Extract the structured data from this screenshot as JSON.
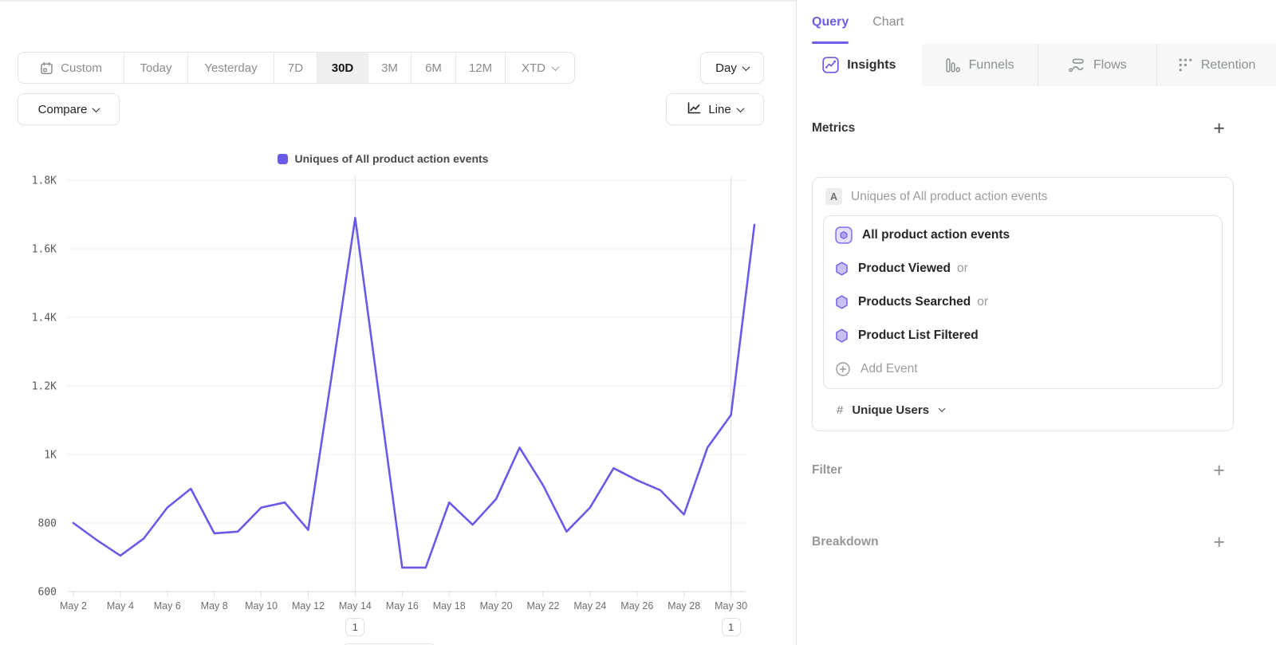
{
  "colors": {
    "accent": "#6C5CE7",
    "line": "#6A5AE8"
  },
  "toolbar": {
    "date_ranges": [
      {
        "label": "Custom",
        "icon": "calendar-icon"
      },
      {
        "label": "Today"
      },
      {
        "label": "Yesterday"
      },
      {
        "label": "7D"
      },
      {
        "label": "30D"
      },
      {
        "label": "3M"
      },
      {
        "label": "6M"
      },
      {
        "label": "12M"
      },
      {
        "label": "XTD",
        "chevron": true
      }
    ],
    "selected_range": "30D",
    "granularity": "Day",
    "compare_label": "Compare",
    "chart_type_label": "Line"
  },
  "panel": {
    "header_tabs": [
      {
        "label": "Query",
        "active": true
      },
      {
        "label": "Chart",
        "active": false
      }
    ],
    "report_tabs": [
      {
        "label": "Insights",
        "icon": "insights-icon",
        "active": true
      },
      {
        "label": "Funnels",
        "icon": "funnels-icon",
        "active": false
      },
      {
        "label": "Flows",
        "icon": "flows-icon",
        "active": false
      },
      {
        "label": "Retention",
        "icon": "retention-icon",
        "active": false
      }
    ],
    "metrics": {
      "title": "Metrics",
      "add_button": "+",
      "metric_letter": "A",
      "metric_title": "Uniques of All product action events",
      "events": [
        {
          "name": "All product action events",
          "suffix": "",
          "icon": "all-events-icon"
        },
        {
          "name": "Product Viewed",
          "suffix": "or",
          "icon": "hexagon-icon"
        },
        {
          "name": "Products Searched",
          "suffix": "or",
          "icon": "hexagon-icon"
        },
        {
          "name": "Product List Filtered",
          "suffix": "",
          "icon": "hexagon-icon"
        }
      ],
      "add_event_label": "Add Event",
      "aggregation_prefix": "#",
      "aggregation_label": "Unique Users"
    },
    "filter": {
      "title": "Filter",
      "add_button": "+"
    },
    "breakdown": {
      "title": "Breakdown",
      "add_button": "+"
    }
  },
  "chart_data": {
    "type": "line",
    "title": "",
    "legend": [
      {
        "label": "Uniques of All product action events",
        "color": "#6A5AE8"
      }
    ],
    "x": [
      "May 2",
      "May 3",
      "May 4",
      "May 5",
      "May 6",
      "May 7",
      "May 8",
      "May 9",
      "May 10",
      "May 11",
      "May 12",
      "May 13",
      "May 14",
      "May 15",
      "May 16",
      "May 17",
      "May 18",
      "May 19",
      "May 20",
      "May 21",
      "May 22",
      "May 23",
      "May 24",
      "May 25",
      "May 26",
      "May 27",
      "May 28",
      "May 29",
      "May 30",
      "May 31"
    ],
    "series": [
      {
        "name": "Uniques of All product action events",
        "values": [
          800,
          750,
          705,
          755,
          845,
          900,
          770,
          775,
          845,
          860,
          780,
          1230,
          1690,
          1180,
          670,
          670,
          860,
          795,
          870,
          1020,
          910,
          775,
          845,
          960,
          925,
          895,
          825,
          1020,
          1115,
          1670
        ]
      }
    ],
    "ylim": [
      600,
      1800
    ],
    "y_ticks": [
      {
        "value": 600,
        "label": "600"
      },
      {
        "value": 800,
        "label": "800"
      },
      {
        "value": 1000,
        "label": "1K"
      },
      {
        "value": 1200,
        "label": "1.2K"
      },
      {
        "value": 1400,
        "label": "1.4K"
      },
      {
        "value": 1600,
        "label": "1.6K"
      },
      {
        "value": 1800,
        "label": "1.8K"
      }
    ],
    "x_tick_every": 2,
    "grid": "horizontal",
    "legend_position": "top",
    "annotations": [
      {
        "x": "May 14",
        "label": "1"
      },
      {
        "x": "May 30",
        "label": "1"
      }
    ]
  }
}
